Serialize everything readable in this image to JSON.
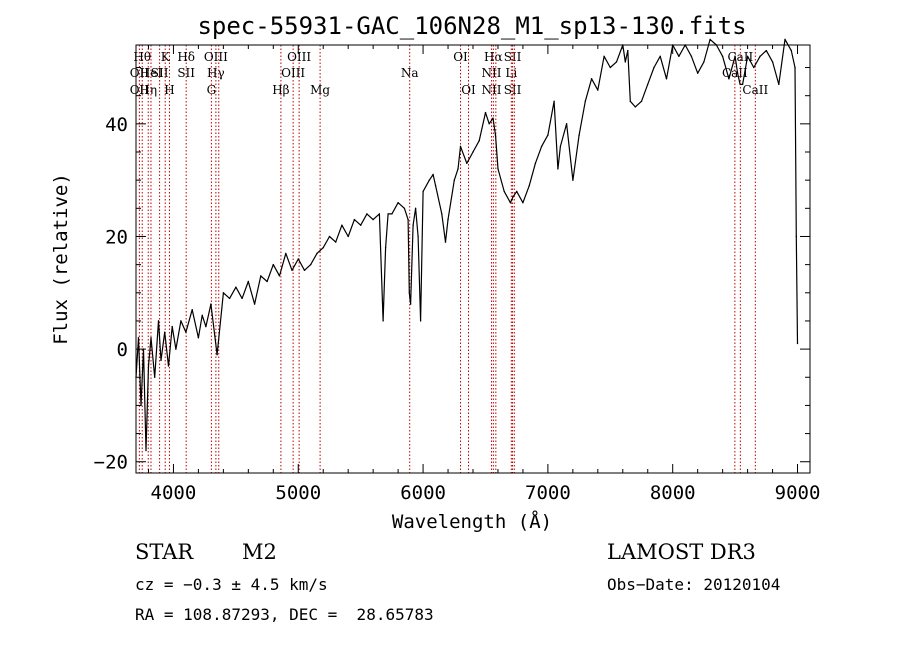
{
  "chart_data": {
    "type": "line",
    "title": "spec-55931-GAC_106N28_M1_sp13-130.fits",
    "xlabel": "Wavelength (Å)",
    "ylabel": "Flux (relative)",
    "xlim": [
      3700,
      9100
    ],
    "ylim": [
      -22,
      54
    ],
    "xticks": [
      4000,
      5000,
      6000,
      7000,
      8000,
      9000
    ],
    "yticks": [
      -20,
      0,
      20,
      40
    ],
    "series": [
      {
        "name": "flux",
        "x": [
          3700,
          3720,
          3740,
          3760,
          3780,
          3800,
          3820,
          3850,
          3880,
          3900,
          3930,
          3960,
          3990,
          4020,
          4060,
          4100,
          4150,
          4200,
          4230,
          4260,
          4300,
          4350,
          4400,
          4450,
          4500,
          4550,
          4600,
          4650,
          4700,
          4750,
          4800,
          4850,
          4900,
          4950,
          5000,
          5050,
          5100,
          5150,
          5200,
          5250,
          5300,
          5350,
          5400,
          5450,
          5500,
          5550,
          5600,
          5650,
          5680,
          5700,
          5720,
          5750,
          5800,
          5850,
          5880,
          5890,
          5900,
          5920,
          5940,
          5960,
          5980,
          6000,
          6050,
          6080,
          6100,
          6150,
          6180,
          6200,
          6250,
          6280,
          6300,
          6350,
          6400,
          6450,
          6500,
          6530,
          6560,
          6580,
          6600,
          6650,
          6700,
          6720,
          6750,
          6800,
          6850,
          6900,
          6950,
          7000,
          7050,
          7080,
          7100,
          7150,
          7200,
          7250,
          7300,
          7350,
          7400,
          7450,
          7500,
          7550,
          7600,
          7620,
          7640,
          7660,
          7700,
          7750,
          7800,
          7850,
          7900,
          7950,
          8000,
          8050,
          8100,
          8150,
          8200,
          8250,
          8300,
          8350,
          8400,
          8450,
          8500,
          8520,
          8540,
          8560,
          8600,
          8650,
          8700,
          8750,
          8800,
          8850,
          8900,
          8950,
          8980,
          8990,
          9000
        ],
        "values": [
          -5,
          2,
          -10,
          0,
          -18,
          -3,
          2,
          -5,
          5,
          -2,
          3,
          -3,
          4,
          0,
          5,
          3,
          7,
          2,
          6,
          4,
          8,
          -1,
          10,
          9,
          11,
          9,
          12,
          8,
          13,
          12,
          15,
          13,
          17,
          14,
          16,
          14,
          15,
          17,
          18,
          20,
          19,
          22,
          20,
          23,
          22,
          24,
          23,
          24,
          5,
          18,
          24,
          24,
          26,
          25,
          23,
          10,
          8,
          22,
          25,
          20,
          5,
          28,
          30,
          31,
          29,
          24,
          19,
          23,
          30,
          32,
          36,
          33,
          35,
          37,
          42,
          40,
          41,
          38,
          32,
          28,
          26,
          27,
          28,
          26,
          29,
          33,
          36,
          38,
          44,
          32,
          36,
          40,
          30,
          38,
          44,
          48,
          46,
          52,
          50,
          51,
          54,
          51,
          53,
          44,
          43,
          44,
          47,
          50,
          52,
          48,
          54,
          52,
          54,
          52,
          49,
          51,
          55,
          54,
          52,
          48,
          52,
          49,
          47,
          47,
          52,
          50,
          52,
          53,
          51,
          47,
          55,
          53,
          50,
          20,
          1
        ]
      }
    ],
    "line_markers": [
      {
        "x": 3727,
        "top": "",
        "mid": "OII",
        "low": "OII"
      },
      {
        "x": 3750,
        "top": "Hθ",
        "mid": "",
        "low": ""
      },
      {
        "x": 3798,
        "top": "",
        "mid": "",
        "low": "Hη"
      },
      {
        "x": 3820,
        "top": "",
        "mid": "HeI",
        "low": ""
      },
      {
        "x": 3889,
        "top": "",
        "mid": "SII",
        "low": ""
      },
      {
        "x": 3934,
        "top": "K",
        "mid": "",
        "low": ""
      },
      {
        "x": 3968,
        "top": "",
        "mid": "",
        "low": "H"
      },
      {
        "x": 4102,
        "top": "Hδ",
        "mid": "SII",
        "low": ""
      },
      {
        "x": 4304,
        "top": "",
        "mid": "",
        "low": "G"
      },
      {
        "x": 4340,
        "top": "OIII",
        "mid": "Hγ",
        "low": ""
      },
      {
        "x": 4363,
        "top": "",
        "mid": "",
        "low": ""
      },
      {
        "x": 4861,
        "top": "",
        "mid": "",
        "low": "Hβ"
      },
      {
        "x": 4959,
        "top": "",
        "mid": "OIII",
        "low": ""
      },
      {
        "x": 5007,
        "top": "OIII",
        "mid": "",
        "low": ""
      },
      {
        "x": 5175,
        "top": "",
        "mid": "",
        "low": "Mg"
      },
      {
        "x": 5893,
        "top": "",
        "mid": "Na",
        "low": ""
      },
      {
        "x": 6300,
        "top": "OI",
        "mid": "",
        "low": ""
      },
      {
        "x": 6364,
        "top": "",
        "mid": "",
        "low": "OI"
      },
      {
        "x": 6548,
        "top": "",
        "mid": "NII",
        "low": "NII"
      },
      {
        "x": 6563,
        "top": "Hα",
        "mid": "",
        "low": ""
      },
      {
        "x": 6583,
        "top": "",
        "mid": "",
        "low": ""
      },
      {
        "x": 6707,
        "top": "",
        "mid": "Li",
        "low": ""
      },
      {
        "x": 6717,
        "top": "SII",
        "mid": "",
        "low": "SII"
      },
      {
        "x": 6731,
        "top": "",
        "mid": "",
        "low": ""
      },
      {
        "x": 8498,
        "top": "",
        "mid": "CaII",
        "low": ""
      },
      {
        "x": 8542,
        "top": "CaII",
        "mid": "",
        "low": ""
      },
      {
        "x": 8662,
        "top": "",
        "mid": "",
        "low": "CaII"
      }
    ]
  },
  "info": {
    "class": "STAR",
    "subclass": "M2",
    "survey": "LAMOST DR3",
    "cz": "cz = −0.3 ± 4.5 km/s",
    "obs_date": "Obs−Date: 20120104",
    "coords": "RA = 108.87293, DEC =  28.65783"
  }
}
